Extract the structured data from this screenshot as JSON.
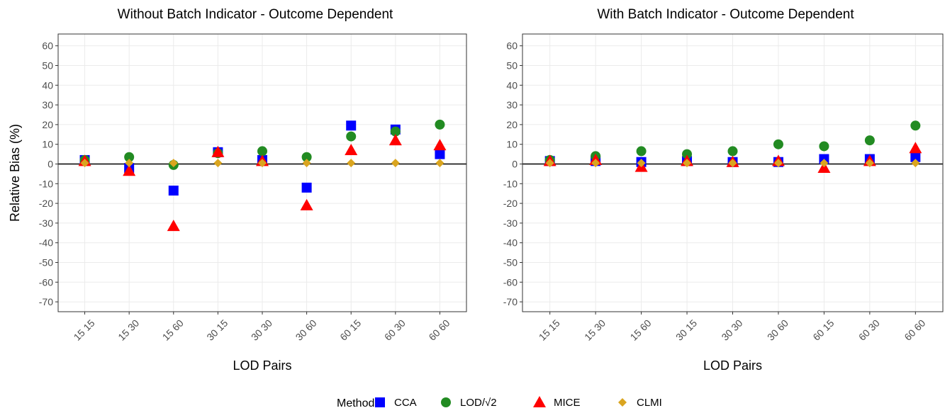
{
  "chart_data": [
    {
      "type": "scatter",
      "title": "Without Batch Indicator - Outcome Dependent",
      "x_label": "LOD Pairs",
      "y_label": "Relative Bias (%)",
      "categories": [
        "15 15",
        "15 30",
        "15 60",
        "30 15",
        "30 30",
        "30 60",
        "60 15",
        "60 30",
        "60 60"
      ],
      "ylim": [
        -75,
        66
      ],
      "yticks": [
        -70,
        -60,
        -50,
        -40,
        -30,
        -20,
        -10,
        0,
        10,
        20,
        30,
        40,
        50,
        60
      ],
      "grid": true,
      "hline": 0,
      "series": [
        {
          "values": [
            2,
            -2,
            -13.5,
            6,
            2,
            -12,
            19.5,
            17.5,
            5
          ]
        },
        {
          "values": [
            2,
            3.5,
            -0.5,
            5.5,
            6.5,
            3.5,
            14,
            16.5,
            20
          ]
        },
        {
          "values": [
            1.5,
            -3.5,
            -31.5,
            6,
            1.5,
            -21,
            7,
            12,
            9.5
          ]
        },
        {
          "values": [
            0.5,
            0.5,
            0.5,
            0.5,
            0.5,
            0.5,
            0.5,
            0.5,
            0.5
          ]
        }
      ]
    },
    {
      "type": "scatter",
      "title": "With Batch Indicator - Outcome Dependent",
      "x_label": "LOD Pairs",
      "categories": [
        "15 15",
        "15 30",
        "15 60",
        "30 15",
        "30 30",
        "30 60",
        "60 15",
        "60 30",
        "60 60"
      ],
      "ylim": [
        -75,
        66
      ],
      "yticks": [
        -70,
        -60,
        -50,
        -40,
        -30,
        -20,
        -10,
        0,
        10,
        20,
        30,
        40,
        50,
        60
      ],
      "grid": true,
      "hline": 0,
      "series": [
        {
          "values": [
            1.5,
            1.5,
            1,
            1.5,
            1,
            1,
            2.5,
            2.5,
            3.5
          ]
        },
        {
          "values": [
            2,
            4,
            6.5,
            5,
            6.5,
            10,
            9,
            12,
            19.5
          ]
        },
        {
          "values": [
            1.5,
            2,
            -1.5,
            1.5,
            1,
            1.5,
            -2,
            1.5,
            8
          ]
        },
        {
          "values": [
            0.5,
            0.5,
            0.5,
            0.5,
            0.5,
            0.5,
            0.5,
            0.5,
            0.5
          ]
        }
      ]
    }
  ],
  "legend": {
    "title": "Method:",
    "position": "bottom",
    "items": [
      {
        "name": "CCA",
        "color": "#0000ff",
        "shape": "square"
      },
      {
        "name": "LOD/√2",
        "color": "#228b22",
        "shape": "circle"
      },
      {
        "name": "MICE",
        "color": "#ff0000",
        "shape": "triangle"
      },
      {
        "name": "CLMI",
        "color": "#daa520",
        "shape": "diamond"
      }
    ]
  }
}
